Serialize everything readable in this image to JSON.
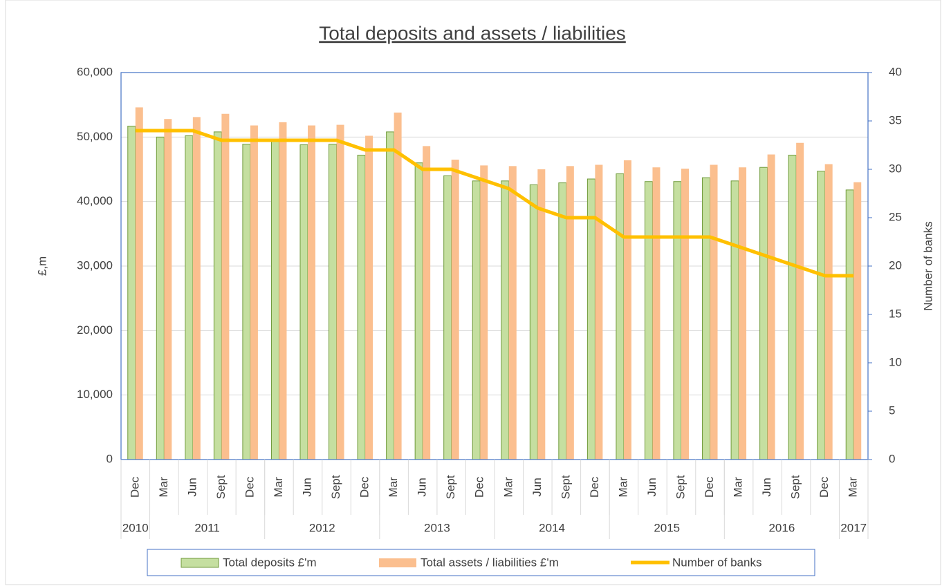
{
  "chart_data": {
    "type": "bar_line",
    "title": "Total deposits and assets / liabilities",
    "ylabel": "£,m",
    "y2label": "Number of banks",
    "categories": [
      "Dec",
      "Mar",
      "Jun",
      "Sept",
      "Dec",
      "Mar",
      "Jun",
      "Sept",
      "Dec",
      "Mar",
      "Jun",
      "Sept",
      "Dec",
      "Mar",
      "Jun",
      "Sept",
      "Dec",
      "Mar",
      "Jun",
      "Sept",
      "Dec",
      "Mar",
      "Jun",
      "Sept",
      "Dec",
      "Mar"
    ],
    "category_groups": [
      {
        "label": "2010",
        "size": 1
      },
      {
        "label": "2011",
        "size": 4
      },
      {
        "label": "2012",
        "size": 4
      },
      {
        "label": "2013",
        "size": 4
      },
      {
        "label": "2014",
        "size": 4
      },
      {
        "label": "2015",
        "size": 4
      },
      {
        "label": "2016",
        "size": 4
      },
      {
        "label": "2017",
        "size": 1
      }
    ],
    "series": [
      {
        "name": "Total deposits £'m",
        "type": "bar",
        "color": "#c5dfa0",
        "edge": "#6f9a3a",
        "values": [
          51700,
          50000,
          50200,
          50800,
          48900,
          49600,
          48800,
          48900,
          47200,
          50800,
          46000,
          44000,
          43200,
          43200,
          42600,
          42900,
          43500,
          44300,
          43100,
          43100,
          43700,
          43200,
          45300,
          47200,
          44700,
          41800
        ]
      },
      {
        "name": "Total assets / liabilities £'m",
        "type": "bar",
        "color": "#fbbf8f",
        "values": [
          54600,
          52800,
          53100,
          53600,
          51800,
          52300,
          51800,
          51900,
          50200,
          53800,
          48600,
          46500,
          45600,
          45500,
          45000,
          45500,
          45700,
          46400,
          45300,
          45100,
          45700,
          45300,
          47300,
          49100,
          45800,
          43000
        ]
      },
      {
        "name": "Number of banks",
        "type": "line",
        "axis": "y2",
        "color": "#ffc000",
        "values": [
          34,
          34,
          34,
          33,
          33,
          33,
          33,
          33,
          32,
          32,
          30,
          30,
          29,
          28,
          26,
          25,
          25,
          23,
          23,
          23,
          23,
          22,
          21,
          20,
          19,
          19
        ]
      }
    ],
    "ylim": [
      0,
      60000
    ],
    "yticks": [
      0,
      {
        "value": 10000,
        "label": "10,000"
      },
      {
        "value": 20000,
        "label": "20,000"
      },
      {
        "value": 30000,
        "label": "30,000"
      },
      {
        "value": 40000,
        "label": "40,000"
      },
      {
        "value": 50000,
        "label": "50,000"
      },
      {
        "value": 60000,
        "label": "60,000"
      }
    ],
    "y2lim": [
      0,
      40
    ],
    "y2ticks": [
      0,
      5,
      10,
      15,
      20,
      25,
      30,
      35,
      40
    ],
    "grid": true,
    "legend": "bottom"
  }
}
